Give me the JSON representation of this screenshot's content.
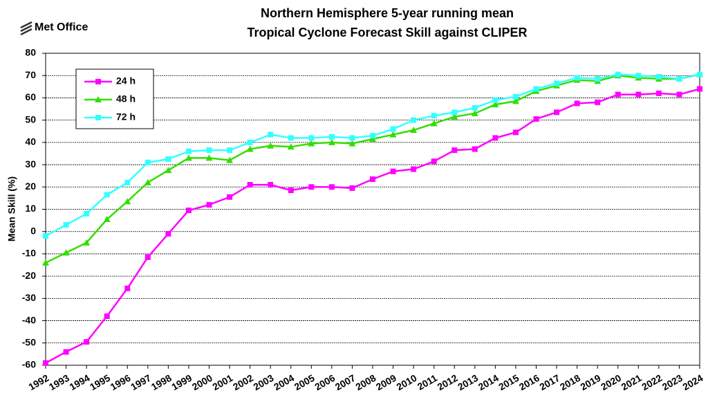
{
  "logo": "Met Office",
  "chart_data": {
    "type": "line",
    "title": [
      "Northern Hemisphere 5-year running mean",
      "Tropical Cyclone Forecast Skill against CLIPER"
    ],
    "y_label": "Mean Skill (%)",
    "categories": [
      "1992",
      "1993",
      "1994",
      "1995",
      "1996",
      "1997",
      "1998",
      "1999",
      "2000",
      "2001",
      "2002",
      "2003",
      "2004",
      "2005",
      "2006",
      "2007",
      "2008",
      "2009",
      "2010",
      "2011",
      "2012",
      "2013",
      "2014",
      "2015",
      "2016",
      "2017",
      "2018",
      "2019",
      "2020",
      "2021",
      "2022",
      "2023",
      "2024"
    ],
    "series": [
      {
        "name": "24 h",
        "color": "#ff00ff",
        "marker": "square",
        "values": [
          -59,
          -54,
          -49.5,
          -38,
          -25.5,
          -11.5,
          -1,
          9.5,
          12,
          15.5,
          21,
          21,
          18.5,
          20,
          20,
          19.5,
          23.5,
          27,
          28,
          31.5,
          36.5,
          37,
          42,
          44.5,
          50.5,
          53.5,
          57.5,
          58,
          61.5,
          61.5,
          62,
          61.5,
          64
        ]
      },
      {
        "name": "48 h",
        "color": "#33dd00",
        "marker": "triangle",
        "values": [
          -14,
          -9.5,
          -5,
          5.5,
          13.5,
          22,
          27.5,
          33,
          33,
          32,
          37,
          38.5,
          38,
          39.5,
          40,
          39.5,
          41.5,
          43.5,
          45.5,
          48.5,
          51.5,
          53,
          57,
          58.5,
          63,
          65.5,
          68,
          67.5,
          70,
          69,
          68.5,
          68.5,
          70.5
        ]
      },
      {
        "name": "72 h",
        "color": "#33ffff",
        "marker": "square",
        "values": [
          -2,
          3,
          8,
          16.5,
          22,
          31,
          32.5,
          36,
          36.5,
          36.5,
          40,
          43.5,
          42,
          42,
          42.5,
          42,
          43,
          46,
          50,
          52,
          53.5,
          55.5,
          59,
          60.5,
          64,
          66.5,
          69,
          68.5,
          70.5,
          70,
          69.5,
          68.5,
          70.5
        ]
      }
    ],
    "ylim": [
      -60,
      80
    ],
    "yticks": [
      -60,
      -50,
      -40,
      -30,
      -20,
      -10,
      0,
      10,
      20,
      30,
      40,
      50,
      60,
      70,
      80
    ],
    "grid": true,
    "legend": "upper left"
  }
}
